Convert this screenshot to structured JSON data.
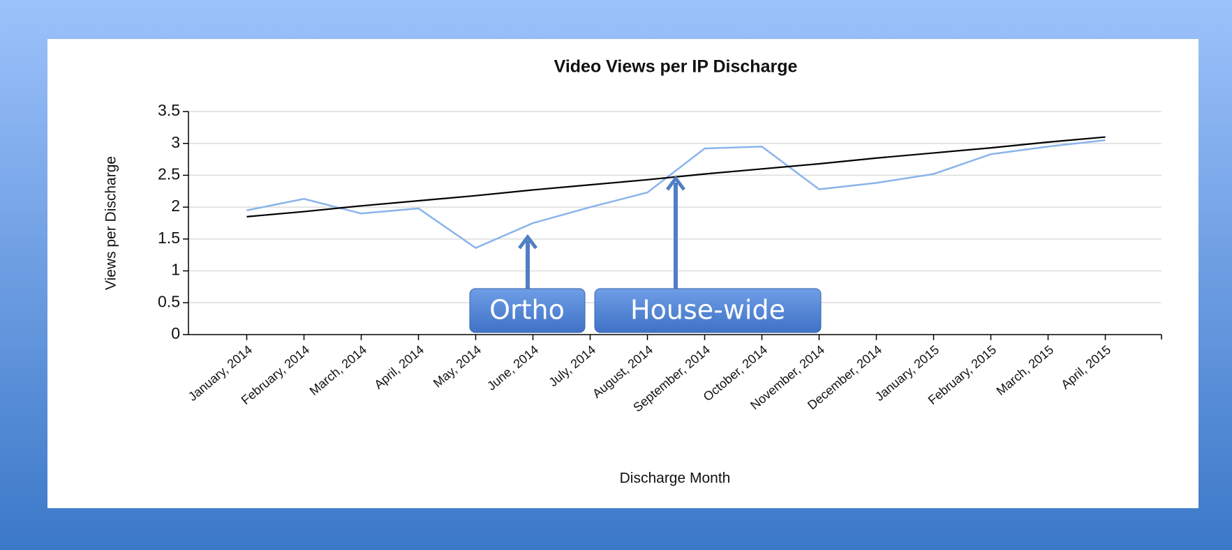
{
  "chart_data": {
    "type": "line",
    "title": "Video Views per IP Discharge",
    "xlabel": "Discharge Month",
    "ylabel": "Views per Discharge",
    "categories": [
      "January, 2014",
      "February, 2014",
      "March, 2014",
      "April, 2014",
      "May, 2014",
      "June, 2014",
      "July, 2014",
      "August, 2014",
      "September, 2014",
      "October, 2014",
      "November, 2014",
      "December, 2014",
      "January, 2015",
      "February, 2015",
      "March, 2015",
      "April, 2015"
    ],
    "series": [
      {
        "color": "#8ab4ea",
        "values": [
          1.95,
          2.13,
          1.9,
          1.98,
          1.36,
          1.75,
          2.0,
          2.23,
          2.92,
          2.95,
          2.28,
          2.38,
          2.52,
          2.83,
          2.95,
          3.05
        ]
      },
      {
        "color": "#000000",
        "values": [
          1.85,
          1.93,
          2.02,
          2.1,
          2.18,
          2.27,
          2.35,
          2.43,
          2.52,
          2.6,
          2.68,
          2.77,
          2.85,
          2.93,
          3.02,
          3.1
        ]
      }
    ],
    "ylim": [
      0,
      3.5
    ],
    "yticks": [
      0,
      0.5,
      1,
      1.5,
      2,
      2.5,
      3,
      3.5
    ],
    "grid": true,
    "annotations": [
      "Ortho",
      "House-wide"
    ]
  }
}
